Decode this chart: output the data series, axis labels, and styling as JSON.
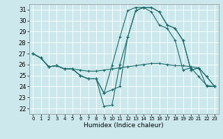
{
  "title": "",
  "xlabel": "Humidex (Indice chaleur)",
  "ylabel": "",
  "bg_color": "#cce8ec",
  "line_color": "#1a6b6b",
  "xlim": [
    -0.5,
    23.5
  ],
  "ylim": [
    21.5,
    31.5
  ],
  "yticks": [
    22,
    23,
    24,
    25,
    26,
    27,
    28,
    29,
    30,
    31
  ],
  "xticks": [
    0,
    1,
    2,
    3,
    4,
    5,
    6,
    7,
    8,
    9,
    10,
    11,
    12,
    13,
    14,
    15,
    16,
    17,
    18,
    19,
    20,
    21,
    22,
    23
  ],
  "xtick_labels": [
    "0",
    "1",
    "2",
    "3",
    "4",
    "5",
    "6",
    "7",
    "8",
    "9",
    "10",
    "11",
    "12",
    "13",
    "14",
    "15",
    "16",
    "17",
    "18",
    "19",
    "20",
    "21",
    "22",
    "23"
  ],
  "series": [
    [
      27.0,
      26.6,
      25.8,
      25.9,
      25.6,
      25.6,
      25.5,
      25.4,
      25.4,
      25.5,
      25.6,
      25.7,
      25.8,
      25.9,
      26.0,
      26.1,
      26.1,
      26.0,
      25.9,
      25.9,
      25.8,
      25.7,
      24.0,
      24.0
    ],
    [
      27.0,
      26.6,
      25.8,
      25.9,
      25.6,
      25.6,
      25.0,
      24.7,
      24.7,
      23.4,
      25.9,
      28.5,
      30.9,
      31.2,
      31.2,
      30.8,
      29.6,
      29.3,
      28.2,
      25.5,
      25.7,
      24.9,
      24.1,
      24.0
    ],
    [
      27.0,
      26.6,
      25.8,
      25.9,
      25.6,
      25.6,
      25.0,
      24.7,
      24.7,
      23.4,
      23.7,
      24.0,
      28.5,
      30.9,
      31.2,
      31.2,
      30.8,
      29.6,
      29.3,
      28.2,
      25.5,
      25.7,
      24.9,
      24.0
    ],
    [
      27.0,
      26.6,
      25.8,
      25.9,
      25.6,
      25.6,
      25.0,
      24.7,
      24.7,
      22.2,
      22.3,
      26.0,
      28.5,
      30.9,
      31.2,
      31.2,
      30.8,
      29.6,
      29.3,
      28.2,
      25.5,
      25.7,
      24.9,
      24.0
    ]
  ],
  "figsize": [
    3.2,
    2.0
  ],
  "dpi": 100
}
